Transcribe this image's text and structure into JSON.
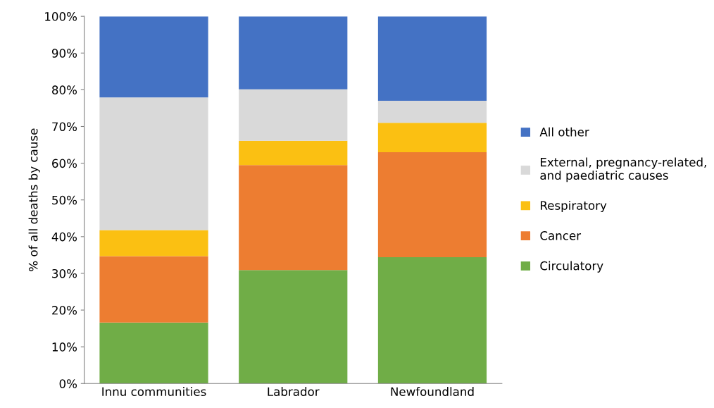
{
  "chart_data": {
    "type": "bar",
    "stacked": true,
    "ylabel": "% of all deaths by cause",
    "categories": [
      "Innu communities",
      "Labrador",
      "Newfoundland"
    ],
    "series": [
      {
        "name": "Circulatory",
        "color": "#70ad47",
        "values": [
          16.6,
          30.9,
          34.4
        ]
      },
      {
        "name": "Cancer",
        "color": "#ed7d31",
        "values": [
          18.1,
          28.6,
          28.6
        ]
      },
      {
        "name": "Respiratory",
        "color": "#fbc012",
        "values": [
          7.1,
          6.6,
          8.0
        ]
      },
      {
        "name": "External, pregnancy-related,\nand paediatric causes",
        "color": "#d9d9d9",
        "values": [
          36.1,
          14.0,
          6.0
        ]
      },
      {
        "name": "All other",
        "color": "#4472c4",
        "values": [
          22.1,
          19.9,
          23.0
        ]
      }
    ],
    "ylim": [
      0,
      100
    ],
    "yticks": [
      {
        "value": 0,
        "label": "0%"
      },
      {
        "value": 10,
        "label": "10%"
      },
      {
        "value": 20,
        "label": "20%"
      },
      {
        "value": 30,
        "label": "30%"
      },
      {
        "value": 40,
        "label": "40%"
      },
      {
        "value": 50,
        "label": "50%"
      },
      {
        "value": 60,
        "label": "60%"
      },
      {
        "value": 70,
        "label": "70%"
      },
      {
        "value": 80,
        "label": "80%"
      },
      {
        "value": 90,
        "label": "90%"
      },
      {
        "value": 100,
        "label": "100%"
      }
    ],
    "grid": false,
    "legend": "right"
  }
}
